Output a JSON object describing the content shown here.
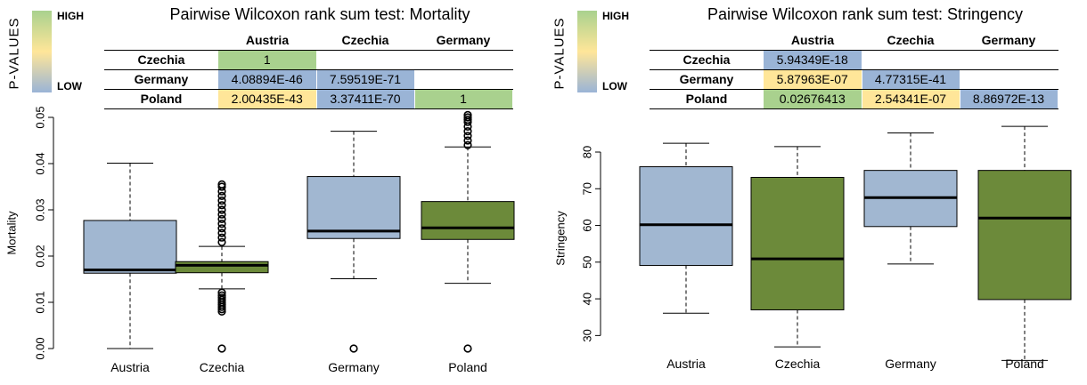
{
  "legend": {
    "title": "P-VALUES",
    "high": "HIGH",
    "low": "LOW"
  },
  "colors": {
    "high": "#a9d18e",
    "mid": "#ffe699",
    "low": "#9ab4d6",
    "box_blue": "#a1b7d1",
    "box_green": "#6c8a3a"
  },
  "panels": [
    {
      "title": "Pairwise Wilcoxon rank sum test: Mortality",
      "columns": [
        "Austria",
        "Czechia",
        "Germany"
      ],
      "rows": [
        {
          "label": "Czechia",
          "cells": [
            {
              "text": "1",
              "level": "high"
            },
            {
              "text": "",
              "level": "none"
            },
            {
              "text": "",
              "level": "none"
            }
          ]
        },
        {
          "label": "Germany",
          "cells": [
            {
              "text": "4.08894E-46",
              "level": "low"
            },
            {
              "text": "7.59519E-71",
              "level": "low"
            },
            {
              "text": "",
              "level": "none"
            }
          ]
        },
        {
          "label": "Poland",
          "cells": [
            {
              "text": "2.00435E-43",
              "level": "mid"
            },
            {
              "text": "3.37411E-70",
              "level": "low"
            },
            {
              "text": "1",
              "level": "high"
            }
          ]
        }
      ]
    },
    {
      "title": "Pairwise Wilcoxon rank sum test: Stringency",
      "columns": [
        "Austria",
        "Czechia",
        "Germany"
      ],
      "rows": [
        {
          "label": "Czechia",
          "cells": [
            {
              "text": "5.94349E-18",
              "level": "low"
            },
            {
              "text": "",
              "level": "none"
            },
            {
              "text": "",
              "level": "none"
            }
          ]
        },
        {
          "label": "Germany",
          "cells": [
            {
              "text": "5.87963E-07",
              "level": "mid"
            },
            {
              "text": "4.77315E-41",
              "level": "low"
            },
            {
              "text": "",
              "level": "none"
            }
          ]
        },
        {
          "label": "Poland",
          "cells": [
            {
              "text": "0.02676413",
              "level": "high"
            },
            {
              "text": "2.54341E-07",
              "level": "mid"
            },
            {
              "text": "8.86972E-13",
              "level": "low"
            }
          ]
        }
      ]
    }
  ],
  "chart_data": [
    {
      "type": "boxplot",
      "ylabel": "Mortality",
      "ylim": [
        0.0,
        0.05
      ],
      "yticks": [
        "0.00",
        "0.01",
        "0.02",
        "0.03",
        "0.04",
        "0.05"
      ],
      "categories": [
        "Austria",
        "Czechia",
        "Germany",
        "Poland"
      ],
      "boxes": [
        {
          "category": "Austria",
          "whisker_low": 0.0,
          "q1": 0.0163,
          "median": 0.017,
          "q3": 0.0277,
          "whisker_high": 0.0401,
          "outliers": [],
          "color": "blue"
        },
        {
          "category": "Czechia",
          "whisker_low": 0.0129,
          "q1": 0.0164,
          "median": 0.018,
          "q3": 0.0188,
          "whisker_high": 0.0221,
          "outliers": [
            0.0,
            0.008,
            0.0085,
            0.009,
            0.0095,
            0.01,
            0.0105,
            0.011,
            0.0115,
            0.0121,
            0.023,
            0.024,
            0.025,
            0.026,
            0.027,
            0.028,
            0.029,
            0.03,
            0.031,
            0.032,
            0.033,
            0.034,
            0.035,
            0.0355
          ],
          "color": "green"
        },
        {
          "category": "Germany",
          "whisker_low": 0.0151,
          "q1": 0.0238,
          "median": 0.0254,
          "q3": 0.0372,
          "whisker_high": 0.047,
          "outliers": [
            0.0
          ],
          "color": "blue"
        },
        {
          "category": "Poland",
          "whisker_low": 0.0141,
          "q1": 0.0236,
          "median": 0.0261,
          "q3": 0.0318,
          "whisker_high": 0.0436,
          "outliers": [
            0.0,
            0.044,
            0.045,
            0.046,
            0.047,
            0.048,
            0.049,
            0.0495,
            0.05,
            0.0505
          ],
          "color": "green"
        }
      ]
    },
    {
      "type": "boxplot",
      "ylabel": "Stringency",
      "ylim": [
        25,
        88
      ],
      "yticks": [
        "30",
        "40",
        "50",
        "60",
        "70",
        "80"
      ],
      "categories": [
        "Austria",
        "Czechia",
        "Germany",
        "Poland"
      ],
      "boxes": [
        {
          "category": "Austria",
          "whisker_low": 36.1,
          "q1": 49.1,
          "median": 60.2,
          "q3": 76.0,
          "whisker_high": 82.4,
          "outliers": [],
          "color": "blue"
        },
        {
          "category": "Czechia",
          "whisker_low": 26.9,
          "q1": 37.0,
          "median": 50.9,
          "q3": 73.1,
          "whisker_high": 81.5,
          "outliers": [],
          "color": "green"
        },
        {
          "category": "Germany",
          "whisker_low": 49.5,
          "q1": 59.7,
          "median": 67.6,
          "q3": 75.0,
          "whisker_high": 85.2,
          "outliers": [],
          "color": "blue"
        },
        {
          "category": "Poland",
          "whisker_low": 23.2,
          "q1": 39.8,
          "median": 62.0,
          "q3": 75.0,
          "whisker_high": 87.0,
          "outliers": [],
          "color": "green"
        }
      ]
    }
  ]
}
